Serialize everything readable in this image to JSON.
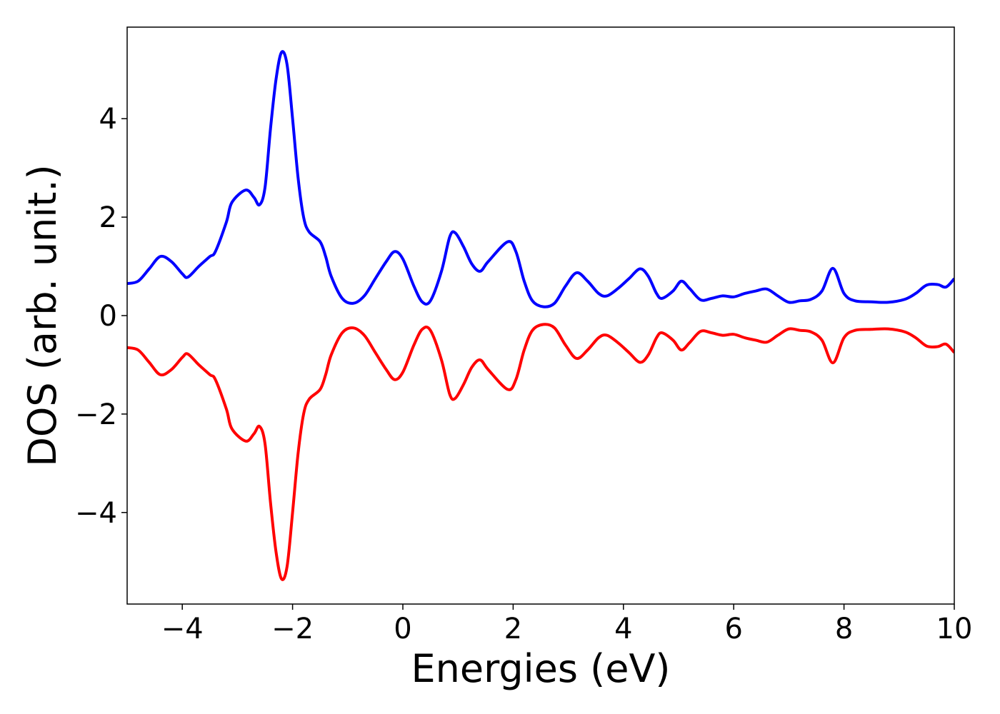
{
  "chart_data": {
    "type": "line",
    "x_label": "Energies (eV)",
    "y_label": "DOS (arb. unit.)",
    "x": [
      -5,
      -4.8,
      -4.6,
      -4.4,
      -4.2,
      -4.0,
      -3.9,
      -3.7,
      -3.5,
      -3.4,
      -3.2,
      -3.1,
      -2.85,
      -2.7,
      -2.6,
      -2.5,
      -2.4,
      -2.3,
      -2.2,
      -2.1,
      -2.0,
      -1.9,
      -1.8,
      -1.7,
      -1.5,
      -1.4,
      -1.3,
      -1.1,
      -0.9,
      -0.7,
      -0.5,
      -0.3,
      -0.15,
      0,
      0.2,
      0.35,
      0.5,
      0.7,
      0.85,
      0.95,
      1.1,
      1.25,
      1.4,
      1.55,
      1.9,
      2.05,
      2.2,
      2.35,
      2.55,
      2.75,
      2.95,
      3.15,
      3.35,
      3.55,
      3.7,
      3.9,
      4.1,
      4.3,
      4.45,
      4.6,
      4.7,
      4.9,
      5.05,
      5.2,
      5.4,
      5.6,
      5.8,
      6.0,
      6.2,
      6.4,
      6.6,
      6.8,
      7.0,
      7.2,
      7.4,
      7.6,
      7.8,
      8.0,
      8.2,
      8.5,
      8.8,
      9.1,
      9.3,
      9.5,
      9.7,
      9.85,
      10
    ],
    "series": [
      {
        "color": "#0000ff",
        "values": [
          0.65,
          0.7,
          0.95,
          1.2,
          1.1,
          0.85,
          0.78,
          1.0,
          1.2,
          1.3,
          1.9,
          2.3,
          2.55,
          2.4,
          2.25,
          2.6,
          3.8,
          4.8,
          5.35,
          5.1,
          4.0,
          2.8,
          2.0,
          1.7,
          1.5,
          1.2,
          0.8,
          0.35,
          0.25,
          0.4,
          0.75,
          1.1,
          1.3,
          1.15,
          0.6,
          0.28,
          0.3,
          0.9,
          1.6,
          1.68,
          1.4,
          1.05,
          0.9,
          1.1,
          1.5,
          1.3,
          0.7,
          0.3,
          0.18,
          0.25,
          0.6,
          0.87,
          0.7,
          0.45,
          0.4,
          0.55,
          0.75,
          0.95,
          0.8,
          0.45,
          0.35,
          0.5,
          0.7,
          0.55,
          0.32,
          0.35,
          0.4,
          0.38,
          0.45,
          0.5,
          0.54,
          0.4,
          0.27,
          0.3,
          0.33,
          0.5,
          0.96,
          0.45,
          0.3,
          0.28,
          0.27,
          0.33,
          0.45,
          0.62,
          0.63,
          0.58,
          0.75
        ]
      },
      {
        "color": "#ff0000",
        "values": [
          -0.65,
          -0.7,
          -0.95,
          -1.2,
          -1.1,
          -0.85,
          -0.78,
          -1.0,
          -1.2,
          -1.3,
          -1.9,
          -2.3,
          -2.55,
          -2.4,
          -2.25,
          -2.6,
          -3.8,
          -4.8,
          -5.35,
          -5.1,
          -4.0,
          -2.8,
          -2.0,
          -1.7,
          -1.5,
          -1.2,
          -0.8,
          -0.35,
          -0.25,
          -0.4,
          -0.75,
          -1.1,
          -1.3,
          -1.15,
          -0.6,
          -0.28,
          -0.3,
          -0.9,
          -1.6,
          -1.68,
          -1.4,
          -1.05,
          -0.9,
          -1.1,
          -1.5,
          -1.3,
          -0.7,
          -0.3,
          -0.18,
          -0.25,
          -0.6,
          -0.87,
          -0.7,
          -0.45,
          -0.4,
          -0.55,
          -0.75,
          -0.95,
          -0.8,
          -0.45,
          -0.35,
          -0.5,
          -0.7,
          -0.55,
          -0.32,
          -0.35,
          -0.4,
          -0.38,
          -0.45,
          -0.5,
          -0.54,
          -0.4,
          -0.27,
          -0.3,
          -0.33,
          -0.5,
          -0.96,
          -0.45,
          -0.3,
          -0.28,
          -0.27,
          -0.33,
          -0.45,
          -0.62,
          -0.63,
          -0.58,
          -0.75
        ]
      }
    ],
    "xlim": [
      -5,
      10
    ],
    "xticks": [
      {
        "value": -4,
        "label": "−4"
      },
      {
        "value": -2,
        "label": "−2"
      },
      0,
      2,
      4,
      6,
      8,
      10
    ],
    "ylim": [
      -5.86,
      5.86
    ],
    "yticks": [
      {
        "value": -4,
        "label": "−4"
      },
      {
        "value": -2,
        "label": "−2"
      },
      0,
      2,
      4
    ]
  }
}
